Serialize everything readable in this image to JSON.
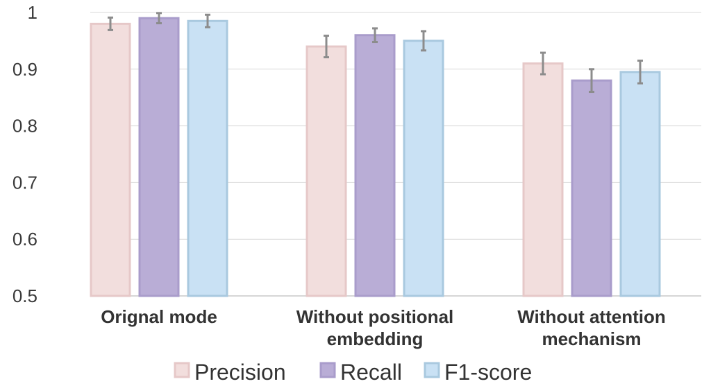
{
  "chart_data": {
    "type": "bar",
    "categories": [
      [
        "Orignal mode"
      ],
      [
        "Without positional",
        "embedding"
      ],
      [
        "Without attention",
        "mechanism"
      ]
    ],
    "series": [
      {
        "name": "Precision",
        "values": [
          0.98,
          0.94,
          0.91
        ],
        "errors": [
          0.011,
          0.019,
          0.019
        ],
        "fill": "#F2DEDD",
        "stroke": "#E6C8C8"
      },
      {
        "name": "Recall",
        "values": [
          0.99,
          0.96,
          0.88
        ],
        "errors": [
          0.009,
          0.012,
          0.02
        ],
        "fill": "#B9ADD6",
        "stroke": "#A99CCB"
      },
      {
        "name": "F1-score",
        "values": [
          0.985,
          0.95,
          0.895
        ],
        "errors": [
          0.011,
          0.017,
          0.02
        ],
        "fill": "#C9E1F4",
        "stroke": "#A9C9DF"
      }
    ],
    "ylim": [
      0.5,
      1
    ],
    "yticks": [
      "0.5",
      "0.6",
      "0.7",
      "0.8",
      "0.9",
      "1"
    ],
    "grid": true,
    "legend": "bottom",
    "title": "",
    "xlabel": "",
    "ylabel": ""
  }
}
